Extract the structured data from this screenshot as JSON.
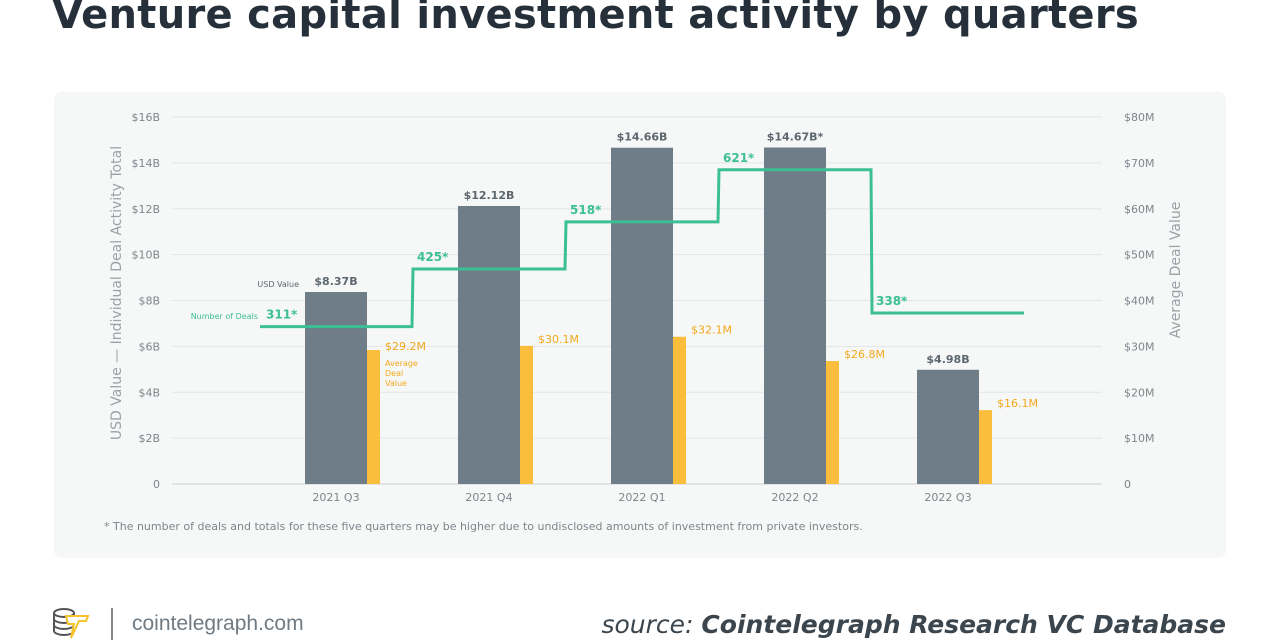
{
  "title": "Venture capital investment activity by quarters",
  "footer": {
    "site": "cointelegraph.com",
    "source_prefix": "source:",
    "source_name": "Cointelegraph Research VC Database"
  },
  "chart_data": {
    "type": "bar+step-line",
    "title": "Venture capital investment activity by quarters",
    "categories": [
      "2021 Q3",
      "2021 Q4",
      "2022 Q1",
      "2022 Q2",
      "2022 Q3"
    ],
    "left_axis": {
      "label": "USD Value — Individual Deal Activity Total",
      "ticks": [
        "0",
        "$2B",
        "$4B",
        "$6B",
        "$8B",
        "$10B",
        "$12B",
        "$14B",
        "$16B"
      ],
      "range": [
        0,
        16
      ]
    },
    "right_axis": {
      "label": "Average Deal Value",
      "ticks": [
        "0",
        "$10M",
        "$20M",
        "$30M",
        "$40M",
        "$50M",
        "$60M",
        "$70M",
        "$80M"
      ],
      "range": [
        0,
        80
      ]
    },
    "grid": true,
    "series": [
      {
        "name": "USD Value",
        "axis": "left",
        "unit": "B",
        "color": "#6e7d87",
        "values": [
          8.37,
          12.12,
          14.66,
          14.67,
          4.98
        ],
        "labels": [
          "$8.37B",
          "$12.12B",
          "$14.66B",
          "$14.67B*",
          "$4.98B"
        ]
      },
      {
        "name": "Average Deal Value",
        "axis": "right",
        "unit": "M",
        "color": "#fbbd3c",
        "values": [
          29.2,
          30.1,
          32.1,
          26.8,
          16.1
        ],
        "labels": [
          "$29.2M",
          "$30.1M",
          "$32.1M",
          "$26.8M",
          "$16.1M"
        ]
      },
      {
        "name": "Number of Deals",
        "type": "step",
        "color": "#3cbf95",
        "values": [
          311,
          425,
          518,
          621,
          338
        ],
        "labels": [
          "311*",
          "425*",
          "518*",
          "621*",
          "338*"
        ]
      }
    ],
    "annotations": {
      "usd_value": "USD Value",
      "deals": "Number of Deals",
      "avg": "Average Deal Value"
    },
    "footnote": "* The number of deals and totals for these five quarters may be higher due to undisclosed amounts of investment from private investors."
  }
}
